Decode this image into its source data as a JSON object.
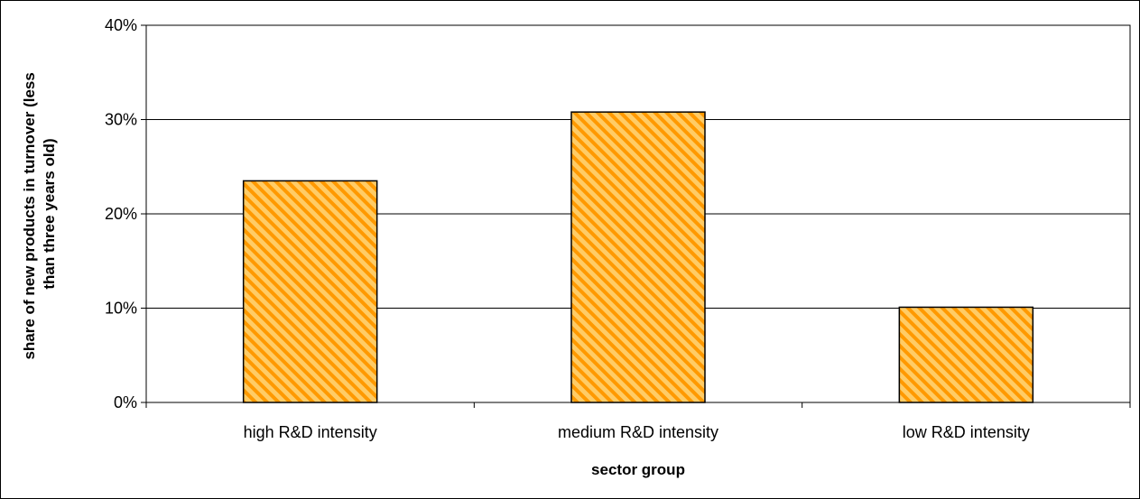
{
  "chart_data": {
    "type": "bar",
    "categories": [
      "high R&D intensity",
      "medium R&D intensity",
      "low R&D intensity"
    ],
    "values": [
      0.235,
      0.308,
      0.101
    ],
    "ylim": [
      0,
      0.4
    ],
    "yticks": [
      0,
      0.1,
      0.2,
      0.3,
      0.4
    ],
    "ytick_labels": [
      "0%",
      "10%",
      "20%",
      "30%",
      "40%"
    ],
    "xlabel": "sector group",
    "ylabel_lines": [
      "share of new products in turnover (less",
      "than three years old)"
    ],
    "grid": true,
    "legend": "none",
    "bar_fill": "#ffcc66",
    "bar_hatch": "#ff9900",
    "bar_edge": "#000000"
  }
}
